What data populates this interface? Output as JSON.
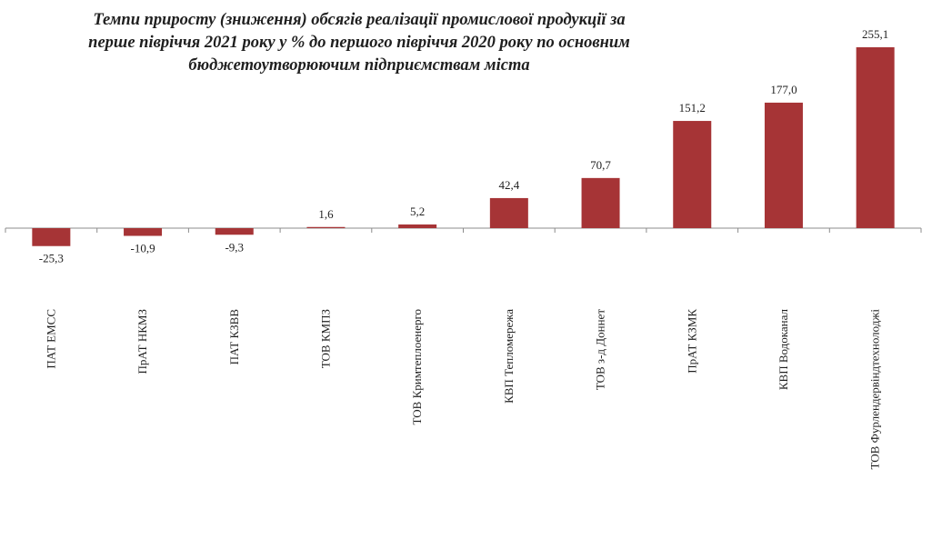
{
  "chart_data": {
    "type": "bar",
    "title_lines": [
      "Темпи приросту (зниження) обсягів реалізації промислової продукції за",
      "перше півріччя  2021 року у % до першого півріччя  2020 року по основним",
      "бюджетоутворюючим підприємствам міста"
    ],
    "categories": [
      "ПАТ ЕМСС",
      "ПрАТ НКМЗ",
      "ПАТ КЗВВ",
      "ТОВ КМПЗ",
      "ТОВ Кримтеплоенерго",
      "КВП Тепломережа",
      "ТОВ з-д Доннет",
      "ПрАТ КЗМК",
      "КВП Водоканал",
      "ТОВ Фурлендервіндтехнолоджі"
    ],
    "values": [
      -25.3,
      -10.9,
      -9.3,
      1.6,
      5.2,
      42.4,
      70.7,
      151.2,
      177.0,
      255.1
    ],
    "value_labels": [
      "-25,3",
      "-10,9",
      "-9,3",
      "1,6",
      "5,2",
      "42,4",
      "70,7",
      "151,2",
      "177,0",
      "255,1"
    ],
    "xlabel": "",
    "ylabel": "",
    "ylim": [
      -25.3,
      255.1
    ],
    "grid": false,
    "colors": {
      "bar": "#a63436",
      "axis": "#8c8c8c",
      "text": "#1f1f1f"
    }
  }
}
